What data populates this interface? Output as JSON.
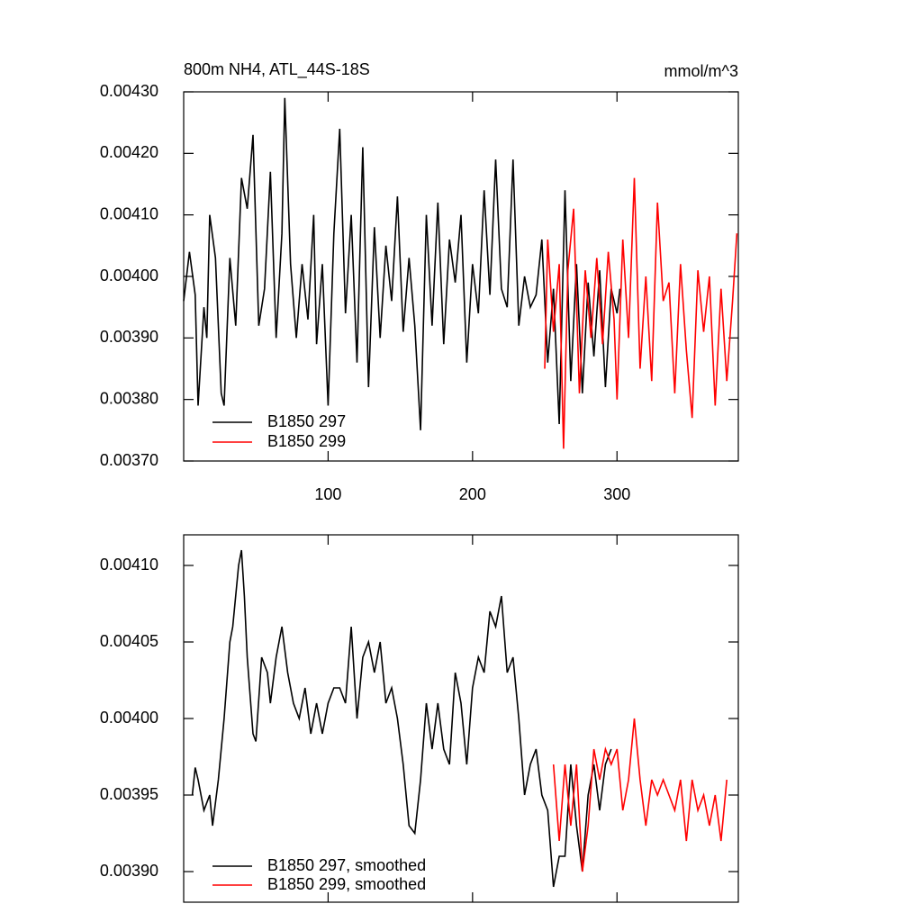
{
  "chart_data": [
    {
      "type": "line",
      "title": "800m NH4, ATL_44S-18S",
      "units": "mmol/m^3",
      "xlim": [
        0,
        384
      ],
      "xticks": [
        100,
        200,
        300
      ],
      "ylim": [
        0.0037,
        0.0043
      ],
      "yticks": [
        {
          "value": 0.0037,
          "label": "0.00370"
        },
        {
          "value": 0.0038,
          "label": "0.00380"
        },
        {
          "value": 0.0039,
          "label": "0.00390"
        },
        {
          "value": 0.004,
          "label": "0.00400"
        },
        {
          "value": 0.0041,
          "label": "0.00410"
        },
        {
          "value": 0.0042,
          "label": "0.00420"
        },
        {
          "value": 0.0043,
          "label": "0.00430"
        }
      ],
      "series": [
        {
          "name": "B1850 297",
          "color": "#000000",
          "x": [
            0,
            4,
            8,
            10,
            14,
            16,
            18,
            22,
            26,
            28,
            32,
            36,
            40,
            44,
            48,
            52,
            56,
            60,
            64,
            68,
            70,
            74,
            78,
            82,
            86,
            90,
            92,
            96,
            100,
            104,
            108,
            112,
            116,
            120,
            124,
            128,
            132,
            136,
            140,
            144,
            148,
            152,
            156,
            160,
            164,
            168,
            172,
            176,
            180,
            184,
            188,
            192,
            196,
            200,
            204,
            208,
            212,
            216,
            220,
            224,
            228,
            232,
            236,
            240,
            244,
            248,
            252,
            256,
            260,
            264,
            268,
            272,
            276,
            280,
            284,
            288,
            292,
            296,
            300,
            302
          ],
          "values": [
            0.00396,
            0.00404,
            0.00397,
            0.00379,
            0.00395,
            0.0039,
            0.0041,
            0.00403,
            0.00381,
            0.00379,
            0.00403,
            0.00392,
            0.00416,
            0.00411,
            0.00423,
            0.00392,
            0.00398,
            0.00417,
            0.0039,
            0.00407,
            0.00429,
            0.00402,
            0.0039,
            0.00402,
            0.00393,
            0.0041,
            0.00389,
            0.00402,
            0.00379,
            0.00407,
            0.00424,
            0.00394,
            0.0041,
            0.00386,
            0.00421,
            0.00382,
            0.00408,
            0.0039,
            0.00405,
            0.00396,
            0.00413,
            0.00391,
            0.00403,
            0.00392,
            0.00375,
            0.0041,
            0.00392,
            0.00412,
            0.00389,
            0.00406,
            0.00399,
            0.0041,
            0.00386,
            0.00402,
            0.00394,
            0.00414,
            0.00397,
            0.00419,
            0.00398,
            0.00395,
            0.00419,
            0.00392,
            0.004,
            0.00395,
            0.00397,
            0.00406,
            0.00386,
            0.00398,
            0.00376,
            0.00414,
            0.00383,
            0.00402,
            0.00381,
            0.00399,
            0.00387,
            0.00401,
            0.00382,
            0.00398,
            0.00394,
            0.00398
          ]
        },
        {
          "name": "B1850 299",
          "color": "#ff0000",
          "x": [
            250,
            252,
            256,
            260,
            263,
            266,
            270,
            274,
            278,
            282,
            286,
            290,
            294,
            298,
            300,
            304,
            308,
            312,
            316,
            320,
            324,
            328,
            332,
            336,
            340,
            344,
            348,
            352,
            356,
            360,
            364,
            368,
            372,
            376,
            380,
            383
          ],
          "values": [
            0.00385,
            0.00406,
            0.00391,
            0.00402,
            0.00372,
            0.00401,
            0.00411,
            0.00381,
            0.00401,
            0.0039,
            0.00403,
            0.00389,
            0.00404,
            0.00393,
            0.0038,
            0.00406,
            0.0039,
            0.00416,
            0.00385,
            0.004,
            0.00383,
            0.00412,
            0.00396,
            0.00399,
            0.00381,
            0.00402,
            0.00388,
            0.00377,
            0.00401,
            0.00391,
            0.004,
            0.00379,
            0.00398,
            0.00383,
            0.00396,
            0.00407
          ]
        }
      ]
    },
    {
      "type": "line",
      "xlim": [
        0,
        384
      ],
      "xticks": [
        100,
        200,
        300
      ],
      "ylim": [
        0.00388,
        0.00412
      ],
      "yticks": [
        {
          "value": 0.0039,
          "label": "0.00390"
        },
        {
          "value": 0.00395,
          "label": "0.00395"
        },
        {
          "value": 0.004,
          "label": "0.00400"
        },
        {
          "value": 0.00405,
          "label": "0.00405"
        },
        {
          "value": 0.0041,
          "label": "0.00410"
        }
      ],
      "series": [
        {
          "name": "B1850 297, smoothed",
          "color": "#000000",
          "x": [
            6,
            8,
            10,
            14,
            18,
            20,
            24,
            26,
            28,
            32,
            34,
            38,
            40,
            42,
            44,
            48,
            50,
            54,
            58,
            60,
            64,
            68,
            72,
            76,
            80,
            84,
            88,
            92,
            96,
            100,
            104,
            108,
            112,
            116,
            120,
            124,
            128,
            132,
            136,
            140,
            144,
            148,
            152,
            156,
            160,
            164,
            168,
            172,
            176,
            180,
            184,
            188,
            192,
            196,
            200,
            204,
            208,
            212,
            216,
            220,
            224,
            228,
            232,
            236,
            240,
            244,
            248,
            252,
            256,
            260,
            264,
            268,
            272,
            276,
            280,
            284,
            288,
            292,
            296
          ],
          "values": [
            0.00395,
            0.003968,
            0.00396,
            0.00394,
            0.00395,
            0.00393,
            0.00396,
            0.00398,
            0.004,
            0.00405,
            0.00406,
            0.0041,
            0.00411,
            0.00408,
            0.00404,
            0.00399,
            0.003985,
            0.00404,
            0.00403,
            0.00401,
            0.00404,
            0.00406,
            0.00403,
            0.00401,
            0.004,
            0.00402,
            0.00399,
            0.00401,
            0.00399,
            0.00401,
            0.00402,
            0.00402,
            0.00401,
            0.00406,
            0.004,
            0.00404,
            0.00405,
            0.00403,
            0.00405,
            0.00401,
            0.00402,
            0.004,
            0.00397,
            0.00393,
            0.003925,
            0.00396,
            0.00401,
            0.00398,
            0.00401,
            0.00398,
            0.00397,
            0.00403,
            0.00401,
            0.00397,
            0.00402,
            0.00404,
            0.00403,
            0.00407,
            0.00406,
            0.00408,
            0.00403,
            0.00404,
            0.004,
            0.00395,
            0.00397,
            0.00398,
            0.00395,
            0.00394,
            0.00389,
            0.00391,
            0.00391,
            0.00397,
            0.00393,
            0.0039,
            0.00395,
            0.00397,
            0.00394,
            0.00397,
            0.00398
          ]
        },
        {
          "name": "B1850 299, smoothed",
          "color": "#ff0000",
          "x": [
            256,
            260,
            264,
            268,
            272,
            276,
            280,
            284,
            288,
            292,
            296,
            300,
            304,
            308,
            312,
            316,
            320,
            324,
            328,
            332,
            336,
            340,
            344,
            348,
            352,
            356,
            360,
            364,
            368,
            372,
            376
          ],
          "values": [
            0.00397,
            0.00392,
            0.00397,
            0.00393,
            0.00397,
            0.0039,
            0.00393,
            0.00398,
            0.00396,
            0.00398,
            0.00397,
            0.00398,
            0.00394,
            0.00396,
            0.004,
            0.00396,
            0.00393,
            0.00396,
            0.00395,
            0.00396,
            0.00395,
            0.00394,
            0.00396,
            0.00392,
            0.00396,
            0.00394,
            0.00395,
            0.00393,
            0.00395,
            0.00392,
            0.00396
          ]
        }
      ]
    }
  ]
}
